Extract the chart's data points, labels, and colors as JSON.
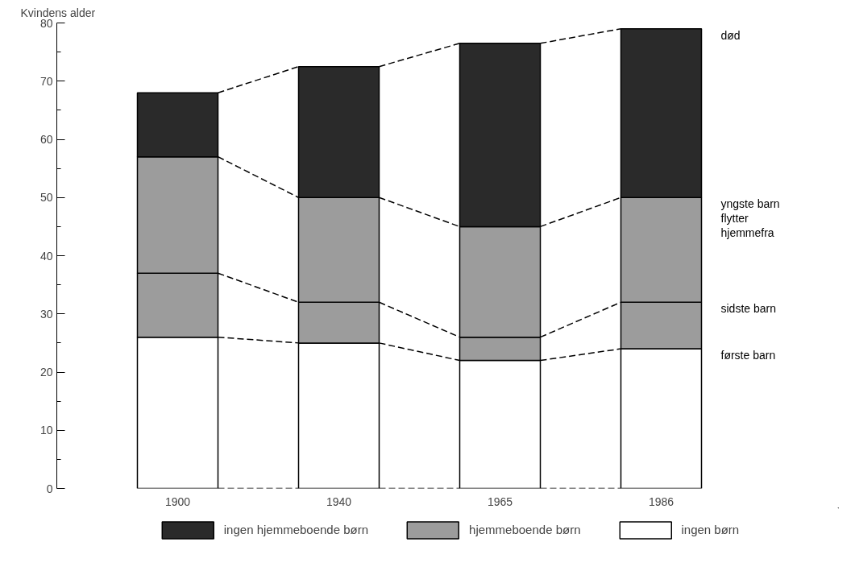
{
  "chart_data": {
    "type": "bar",
    "stacked": true,
    "ylabel": "Kvindens alder",
    "categories": [
      "1900",
      "1940",
      "1965",
      "1986"
    ],
    "series": [
      {
        "name": "ingen børn",
        "color": "#ffffff",
        "values": [
          26,
          25,
          22,
          24
        ]
      },
      {
        "color": "#9c9c9c",
        "values": [
          11,
          7,
          4,
          8
        ]
      },
      {
        "name": "hjemmeboende børn",
        "color": "#9c9c9c",
        "values": [
          20,
          18,
          19,
          18
        ]
      },
      {
        "name": "ingen hjemmeboende børn",
        "color": "#2a2a2a",
        "values": [
          11,
          22.5,
          31.5,
          29
        ]
      }
    ],
    "ylim": [
      0,
      80
    ],
    "yticks": [
      0,
      10,
      20,
      30,
      40,
      50,
      60,
      70,
      80
    ],
    "grid": false,
    "legend": "bottom",
    "line_style": "dashed",
    "annotations": [
      "død",
      "yngste barn\nflytter\nhjemmefra",
      "sidste barn",
      "første barn"
    ]
  }
}
